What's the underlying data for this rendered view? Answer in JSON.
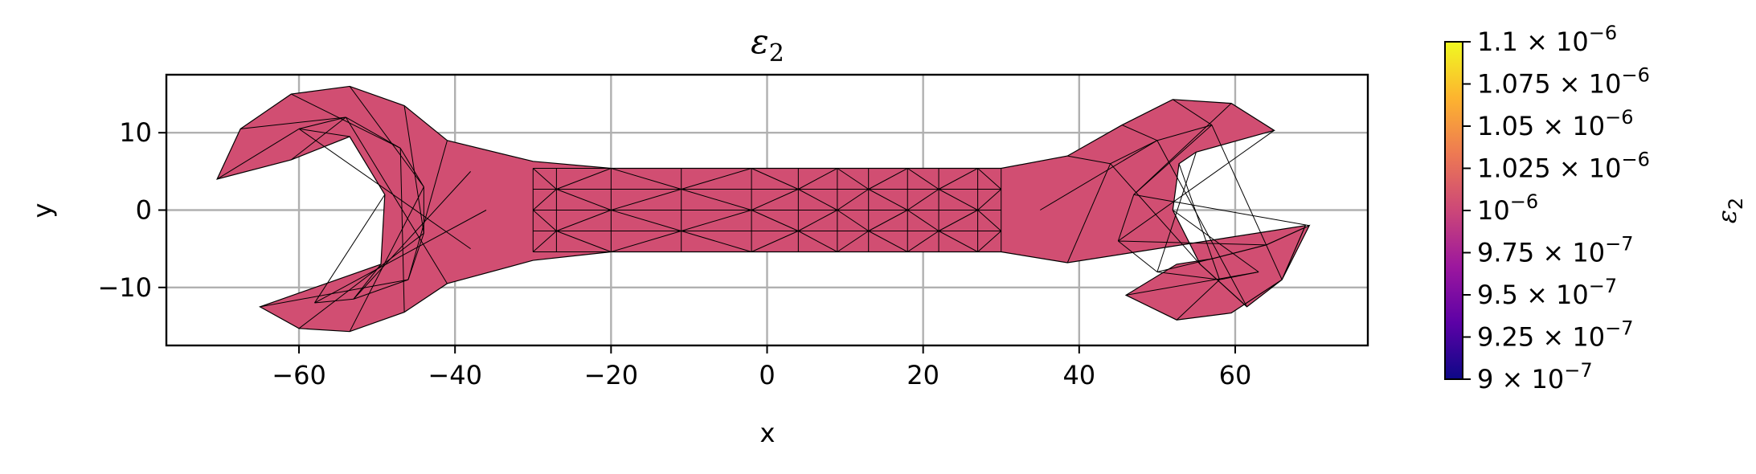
{
  "chart_data": {
    "type": "tripcolor-mesh",
    "title_main": "ε",
    "title_sub": "2",
    "xlabel": "x",
    "ylabel": "y",
    "xlim": [
      -77,
      77
    ],
    "ylim": [
      -17.5,
      17.5
    ],
    "xticks": [
      -60,
      -40,
      -20,
      0,
      20,
      40,
      60
    ],
    "xtick_labels": [
      "−60",
      "−40",
      "−20",
      "0",
      "20",
      "40",
      "60"
    ],
    "yticks": [
      10,
      0,
      -10
    ],
    "ytick_labels": [
      "10",
      "0",
      "−10"
    ],
    "grid": true,
    "fill_color": "#d14e72",
    "field_value": 1e-06,
    "outline": [
      [
        -70.5,
        4
      ],
      [
        -67.5,
        10.5
      ],
      [
        -61,
        15
      ],
      [
        -53.5,
        16
      ],
      [
        -46.5,
        13.5
      ],
      [
        -41,
        9
      ],
      [
        -30,
        6.3
      ],
      [
        -20,
        5.4
      ],
      [
        30,
        5.4
      ],
      [
        38.5,
        7
      ],
      [
        45.5,
        11
      ],
      [
        52,
        14.3
      ],
      [
        59.5,
        13.8
      ],
      [
        65,
        10.3
      ],
      [
        55,
        7.5
      ],
      [
        52.8,
        6
      ],
      [
        52,
        0
      ],
      [
        55.5,
        -7
      ],
      [
        61.5,
        -12.5
      ],
      [
        66,
        -9
      ],
      [
        69.5,
        -2
      ],
      [
        64,
        -4.5
      ],
      [
        57,
        -6.3
      ],
      [
        52.5,
        -7
      ],
      [
        46,
        -11
      ],
      [
        52.5,
        -14.2
      ],
      [
        59.5,
        -13.3
      ],
      [
        66,
        -9
      ],
      [
        69,
        -2
      ],
      [
        38.5,
        -6.8
      ],
      [
        30,
        -5.4
      ],
      [
        -20,
        -5.4
      ],
      [
        -30,
        -6.5
      ],
      [
        -41,
        -9.5
      ],
      [
        -46.5,
        -13.2
      ],
      [
        -53.5,
        -15.7
      ],
      [
        -60,
        -15.3
      ],
      [
        -65,
        -12.5
      ],
      [
        -49.5,
        -7
      ],
      [
        -49,
        2
      ],
      [
        -53.5,
        9.5
      ],
      [
        -61,
        6.5
      ]
    ],
    "colorbar": {
      "label_main": "ε",
      "label_sub": "2",
      "min": 9e-07,
      "max": 1.1e-06,
      "ticks": [
        {
          "value": 1.1e-06,
          "mant": "1.1",
          "exp": "−6"
        },
        {
          "value": 1.075e-06,
          "mant": "1.075",
          "exp": "−6"
        },
        {
          "value": 1.05e-06,
          "mant": "1.05",
          "exp": "−6"
        },
        {
          "value": 1.025e-06,
          "mant": "1.025",
          "exp": "−6"
        },
        {
          "value": 1e-06,
          "mant": "",
          "exp": "−6"
        },
        {
          "value": 9.75e-07,
          "mant": "9.75",
          "exp": "−7"
        },
        {
          "value": 9.5e-07,
          "mant": "9.5",
          "exp": "−7"
        },
        {
          "value": 9.25e-07,
          "mant": "9.25",
          "exp": "−7"
        },
        {
          "value": 9e-07,
          "mant": "9",
          "exp": "−7"
        }
      ],
      "colormap": [
        "#0d0887",
        "#5c01a6",
        "#9c179e",
        "#cc4778",
        "#ed7953",
        "#fdb42f",
        "#f0f921"
      ]
    }
  }
}
